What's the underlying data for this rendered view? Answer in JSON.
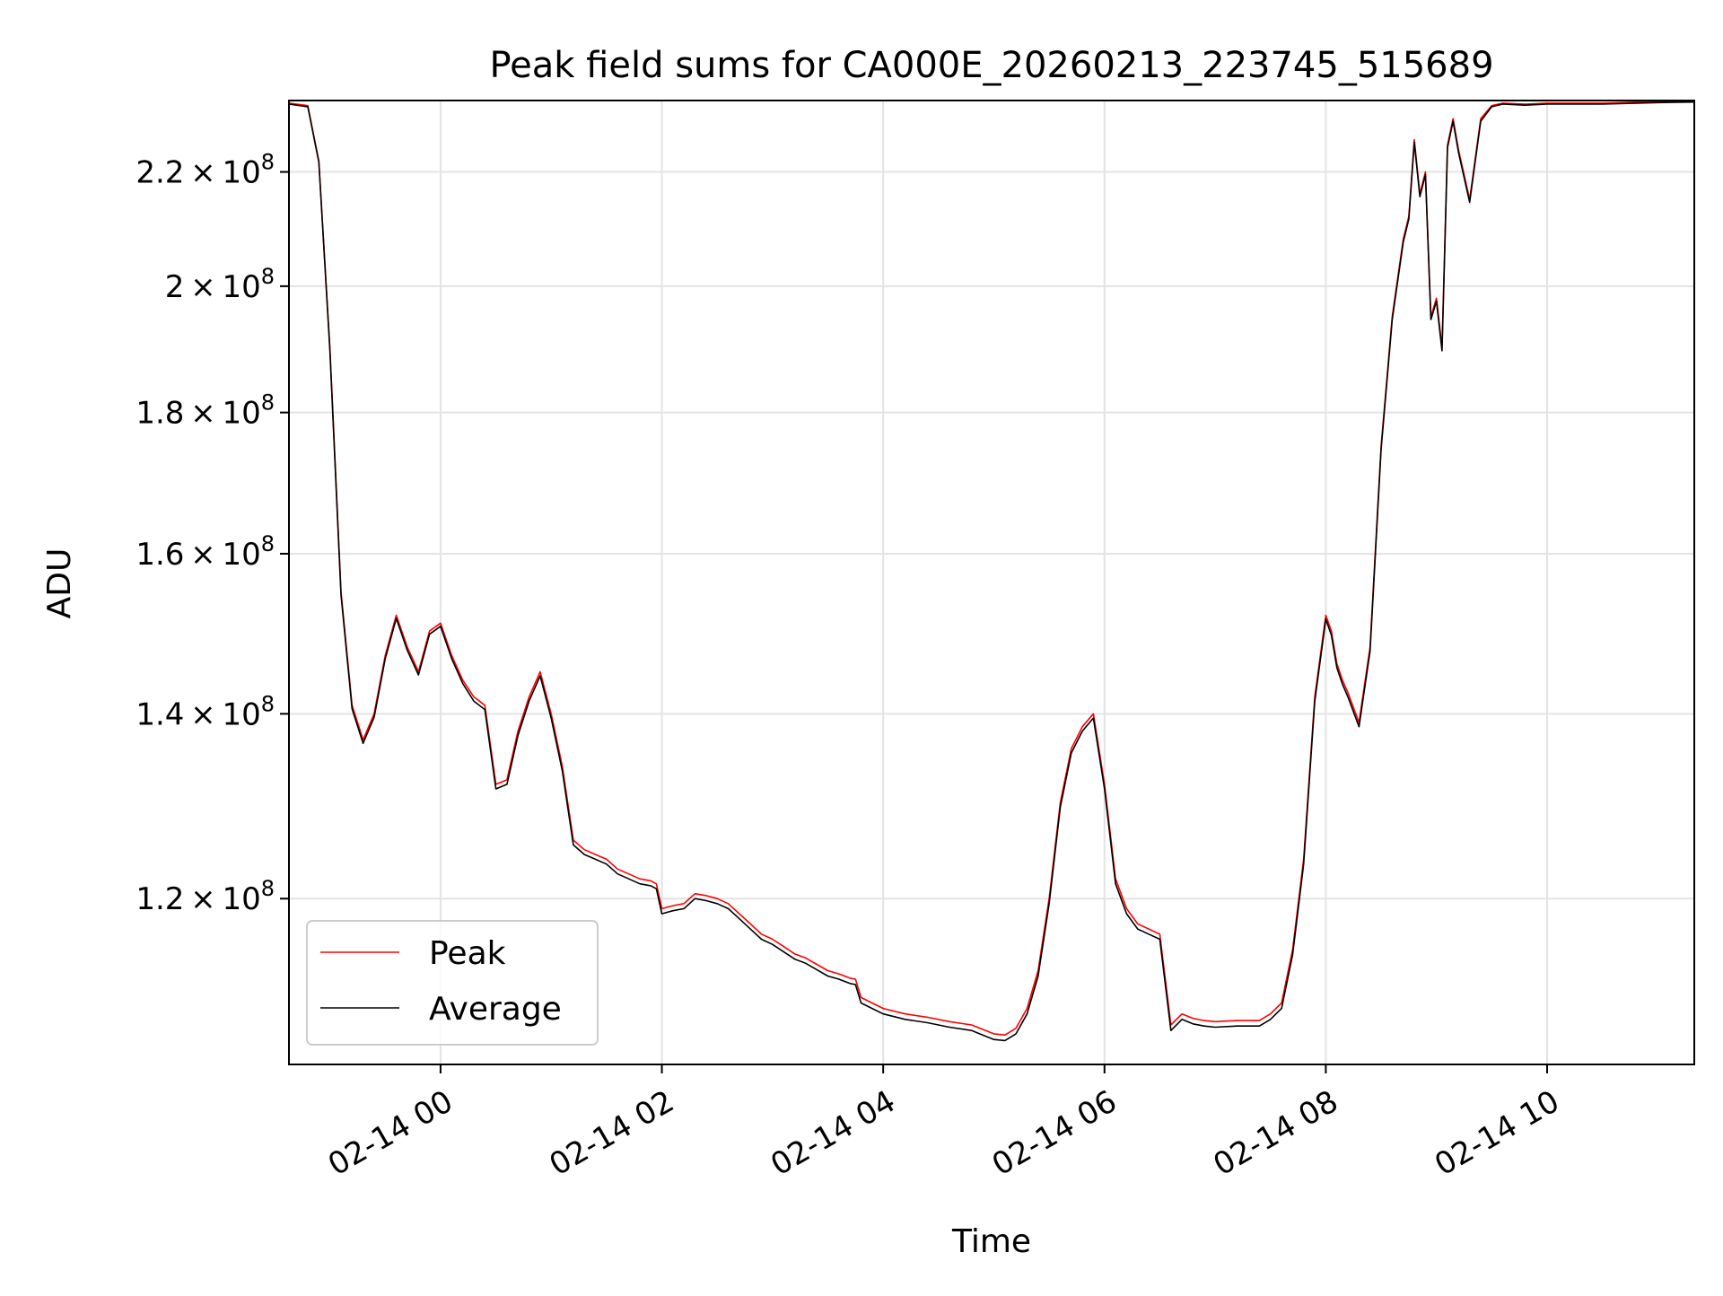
{
  "chart_data": {
    "type": "line",
    "title": "Peak field sums for CA000E_20260213_223745_515689",
    "xlabel": "Time",
    "ylabel": "ADU",
    "xlim_hours": [
      -1.37,
      11.33
    ],
    "ylim": [
      104500000,
      233500000
    ],
    "yscale": "log",
    "grid": true,
    "x_ticks": [
      {
        "hour": 0,
        "label": "02-14 00"
      },
      {
        "hour": 2,
        "label": "02-14 02"
      },
      {
        "hour": 4,
        "label": "02-14 04"
      },
      {
        "hour": 6,
        "label": "02-14 06"
      },
      {
        "hour": 8,
        "label": "02-14 08"
      },
      {
        "hour": 10,
        "label": "02-14 10"
      }
    ],
    "y_ticks": [
      {
        "value": 120000000,
        "mantissa": "1.2",
        "base": "10",
        "exp": "8"
      },
      {
        "value": 140000000,
        "mantissa": "1.4",
        "base": "10",
        "exp": "8"
      },
      {
        "value": 160000000,
        "mantissa": "1.6",
        "base": "10",
        "exp": "8"
      },
      {
        "value": 180000000,
        "mantissa": "1.8",
        "base": "10",
        "exp": "8"
      },
      {
        "value": 200000000,
        "mantissa": "2",
        "base": "10",
        "exp": "8"
      },
      {
        "value": 220000000,
        "mantissa": "2.2",
        "base": "10",
        "exp": "8"
      }
    ],
    "x_hours_from_0214_0000": [
      -1.37,
      -1.2,
      -1.1,
      -1.0,
      -0.9,
      -0.8,
      -0.7,
      -0.6,
      -0.5,
      -0.4,
      -0.3,
      -0.2,
      -0.1,
      0.0,
      0.1,
      0.2,
      0.3,
      0.4,
      0.5,
      0.6,
      0.7,
      0.8,
      0.9,
      1.0,
      1.1,
      1.2,
      1.3,
      1.4,
      1.5,
      1.6,
      1.7,
      1.8,
      1.9,
      1.95,
      2.0,
      2.1,
      2.2,
      2.3,
      2.4,
      2.5,
      2.6,
      2.7,
      2.8,
      2.9,
      3.0,
      3.1,
      3.2,
      3.3,
      3.4,
      3.5,
      3.6,
      3.7,
      3.75,
      3.8,
      3.9,
      4.0,
      4.2,
      4.4,
      4.6,
      4.8,
      5.0,
      5.1,
      5.2,
      5.3,
      5.4,
      5.5,
      5.6,
      5.7,
      5.8,
      5.9,
      6.0,
      6.1,
      6.2,
      6.3,
      6.4,
      6.5,
      6.6,
      6.7,
      6.8,
      6.9,
      7.0,
      7.2,
      7.4,
      7.5,
      7.6,
      7.7,
      7.8,
      7.9,
      8.0,
      8.05,
      8.1,
      8.15,
      8.2,
      8.3,
      8.4,
      8.5,
      8.6,
      8.7,
      8.75,
      8.8,
      8.85,
      8.9,
      8.95,
      9.0,
      9.05,
      9.1,
      9.15,
      9.2,
      9.3,
      9.4,
      9.5,
      9.6,
      9.8,
      10.0,
      10.5,
      11.0,
      11.33
    ],
    "series": [
      {
        "name": "Peak",
        "color": "#ff0000",
        "values": [
          233000000,
          232500000,
          222000000,
          190000000,
          155000000,
          141000000,
          137000000,
          140000000,
          147000000,
          152000000,
          148000000,
          145000000,
          150000000,
          151000000,
          147000000,
          144000000,
          142000000,
          141000000,
          132000000,
          132500000,
          138000000,
          142000000,
          145000000,
          140000000,
          134000000,
          126000000,
          125000000,
          124500000,
          124000000,
          123000000,
          122500000,
          122000000,
          121800000,
          121500000,
          119000000,
          119300000,
          119500000,
          120500000,
          120300000,
          120000000,
          119500000,
          118500000,
          117500000,
          116500000,
          116000000,
          115300000,
          114600000,
          114200000,
          113600000,
          113000000,
          112700000,
          112300000,
          112200000,
          110500000,
          110000000,
          109500000,
          109000000,
          108700000,
          108300000,
          108000000,
          107200000,
          107100000,
          107700000,
          109500000,
          113000000,
          120000000,
          130000000,
          136000000,
          138500000,
          140000000,
          132000000,
          122000000,
          119000000,
          117500000,
          117000000,
          116500000,
          108000000,
          109000000,
          108600000,
          108400000,
          108300000,
          108400000,
          108400000,
          109000000,
          110000000,
          115000000,
          124000000,
          142000000,
          152000000,
          150000000,
          146000000,
          144000000,
          142500000,
          139000000,
          148000000,
          175000000,
          195000000,
          208000000,
          212000000,
          226000000,
          216000000,
          220000000,
          195000000,
          198000000,
          190000000,
          225000000,
          230000000,
          224000000,
          215000000,
          230000000,
          232500000,
          233000000,
          232800000,
          233000000,
          233000000,
          233300000,
          233400000
        ]
      },
      {
        "name": "Average",
        "color": "#000000",
        "values": [
          232800000,
          232300000,
          221800000,
          189600000,
          154600000,
          140600000,
          136600000,
          139600000,
          146600000,
          151600000,
          147600000,
          144600000,
          149600000,
          150600000,
          146600000,
          143600000,
          141500000,
          140500000,
          131500000,
          132000000,
          137500000,
          141500000,
          144500000,
          139500000,
          133500000,
          125500000,
          124500000,
          124000000,
          123500000,
          122500000,
          122000000,
          121500000,
          121300000,
          121000000,
          118500000,
          118800000,
          119000000,
          120000000,
          119800000,
          119500000,
          119000000,
          118000000,
          117000000,
          116000000,
          115500000,
          114800000,
          114100000,
          113700000,
          113100000,
          112500000,
          112200000,
          111800000,
          111700000,
          110000000,
          109500000,
          109000000,
          108500000,
          108200000,
          107800000,
          107500000,
          106700000,
          106600000,
          107200000,
          109000000,
          112500000,
          119500000,
          129500000,
          135500000,
          138000000,
          139500000,
          131500000,
          121500000,
          118500000,
          117000000,
          116500000,
          116000000,
          107500000,
          108500000,
          108100000,
          107900000,
          107800000,
          107900000,
          107900000,
          108500000,
          109500000,
          114500000,
          123500000,
          141500000,
          151500000,
          149500000,
          145500000,
          143500000,
          142000000,
          138500000,
          147500000,
          174500000,
          194500000,
          207500000,
          211500000,
          225500000,
          215500000,
          219500000,
          194500000,
          197500000,
          189500000,
          224500000,
          229500000,
          223500000,
          214500000,
          229500000,
          232300000,
          232800000,
          232600000,
          232800000,
          232800000,
          233100000,
          233200000
        ]
      }
    ],
    "legend": {
      "placement": "lower-left",
      "entries": [
        "Peak",
        "Average"
      ]
    }
  }
}
